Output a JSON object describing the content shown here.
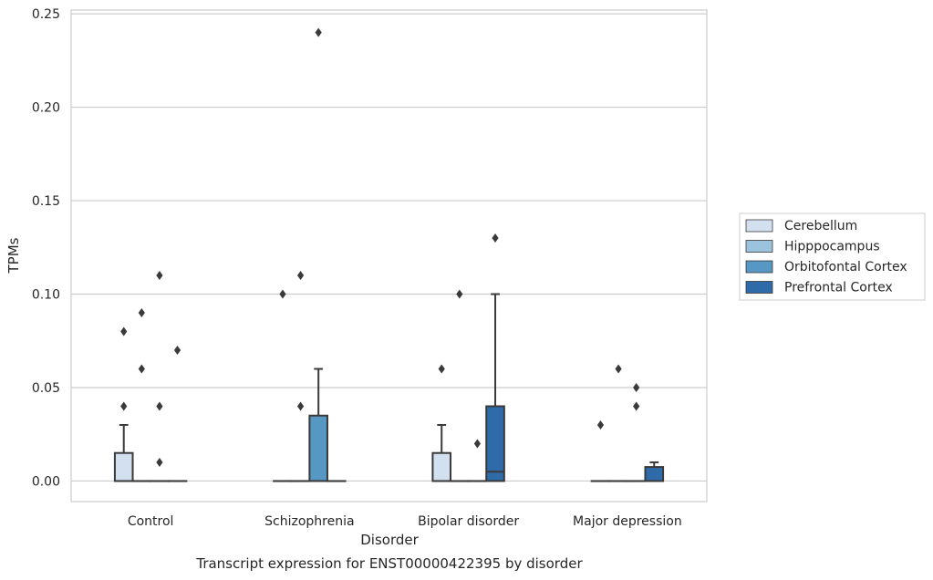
{
  "chart_data": {
    "type": "boxplot",
    "caption": "Transcript expression for ENST00000422395 by disorder",
    "xlabel": "Disorder",
    "ylabel": "TPMs",
    "ylim": [
      -0.011,
      0.252
    ],
    "yticks": [
      0.0,
      0.05,
      0.1,
      0.15,
      0.2,
      0.25
    ],
    "ytick_labels": [
      "0.00",
      "0.05",
      "0.10",
      "0.15",
      "0.20",
      "0.25"
    ],
    "grid": "horizontal",
    "legend_position": "right",
    "categories": [
      "Control",
      "Schizophrenia",
      "Bipolar disorder",
      "Major depression"
    ],
    "series": [
      {
        "name": "Cerebellum",
        "color": "#d2e0ef",
        "boxes": [
          {
            "q1": 0.0,
            "median": 0.0,
            "q3": 0.015,
            "whisker_low": 0.0,
            "whisker_high": 0.03,
            "outliers": [
              0.04,
              0.08
            ]
          },
          {
            "q1": 0.0,
            "median": 0.0,
            "q3": 0.0,
            "whisker_low": 0.0,
            "whisker_high": 0.0,
            "outliers": [
              0.1
            ]
          },
          {
            "q1": 0.0,
            "median": 0.0,
            "q3": 0.015,
            "whisker_low": 0.0,
            "whisker_high": 0.03,
            "outliers": [
              0.06
            ]
          },
          {
            "q1": 0.0,
            "median": 0.0,
            "q3": 0.0,
            "whisker_low": 0.0,
            "whisker_high": 0.0,
            "outliers": [
              0.03
            ]
          }
        ]
      },
      {
        "name": "Hipppocampus",
        "color": "#9cc3dd",
        "boxes": [
          {
            "q1": 0.0,
            "median": 0.0,
            "q3": 0.0,
            "whisker_low": 0.0,
            "whisker_high": 0.0,
            "outliers": [
              0.06,
              0.09
            ]
          },
          {
            "q1": 0.0,
            "median": 0.0,
            "q3": 0.0,
            "whisker_low": 0.0,
            "whisker_high": 0.0,
            "outliers": [
              0.04,
              0.11
            ]
          },
          {
            "q1": 0.0,
            "median": 0.0,
            "q3": 0.0,
            "whisker_low": 0.0,
            "whisker_high": 0.0,
            "outliers": [
              0.1
            ]
          },
          {
            "q1": 0.0,
            "median": 0.0,
            "q3": 0.0,
            "whisker_low": 0.0,
            "whisker_high": 0.0,
            "outliers": [
              0.06
            ]
          }
        ]
      },
      {
        "name": "Orbitofontal Cortex",
        "color": "#5797c4",
        "boxes": [
          {
            "q1": 0.0,
            "median": 0.0,
            "q3": 0.0,
            "whisker_low": 0.0,
            "whisker_high": 0.0,
            "outliers": [
              0.01,
              0.04,
              0.11
            ]
          },
          {
            "q1": 0.0,
            "median": 0.0,
            "q3": 0.035,
            "whisker_low": 0.0,
            "whisker_high": 0.06,
            "outliers": [
              0.24
            ]
          },
          {
            "q1": 0.0,
            "median": 0.0,
            "q3": 0.0,
            "whisker_low": 0.0,
            "whisker_high": 0.0,
            "outliers": [
              0.02
            ]
          },
          {
            "q1": 0.0,
            "median": 0.0,
            "q3": 0.0,
            "whisker_low": 0.0,
            "whisker_high": 0.0,
            "outliers": [
              0.04,
              0.05
            ]
          }
        ]
      },
      {
        "name": "Prefrontal Cortex",
        "color": "#2e6ba8",
        "boxes": [
          {
            "q1": 0.0,
            "median": 0.0,
            "q3": 0.0,
            "whisker_low": 0.0,
            "whisker_high": 0.0,
            "outliers": [
              0.07
            ]
          },
          {
            "q1": 0.0,
            "median": 0.0,
            "q3": 0.0,
            "whisker_low": 0.0,
            "whisker_high": 0.0,
            "outliers": []
          },
          {
            "q1": 0.0,
            "median": 0.005,
            "q3": 0.04,
            "whisker_low": 0.0,
            "whisker_high": 0.1,
            "outliers": [
              0.13
            ]
          },
          {
            "q1": 0.0,
            "median": 0.0,
            "q3": 0.0075,
            "whisker_low": 0.0,
            "whisker_high": 0.01,
            "outliers": []
          }
        ]
      }
    ]
  }
}
